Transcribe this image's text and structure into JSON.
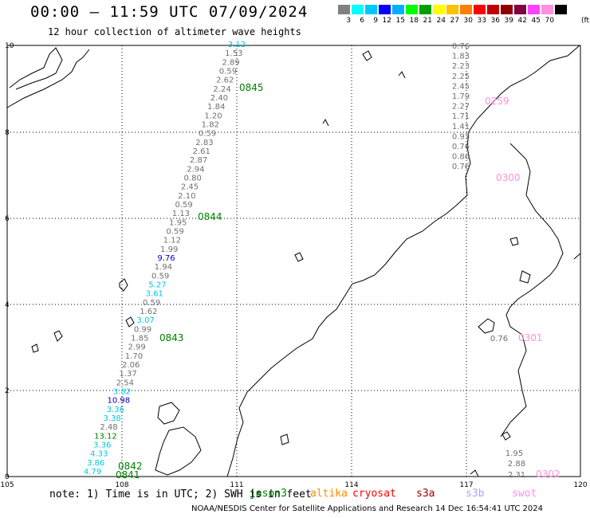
{
  "title": "00:00 — 11:59 UTC 07/09/2024",
  "subtitle": "12 hour collection of altimeter wave heights",
  "colorbar": {
    "colors": [
      "#808080",
      "#00ffff",
      "#00c8ff",
      "#0000ff",
      "#00b0ff",
      "#00ff00",
      "#00a000",
      "#ffff00",
      "#ffc000",
      "#ff8000",
      "#ff0000",
      "#c00000",
      "#900000",
      "#800040",
      "#ff40ff",
      "#ff90e0",
      "#000000"
    ],
    "labels": [
      "3",
      "6",
      "9",
      "12",
      "15",
      "18",
      "21",
      "24",
      "27",
      "30",
      "33",
      "36",
      "39",
      "42",
      "45",
      "70"
    ],
    "unit": "(ft)"
  },
  "axes": {
    "lon_ticks": [
      "105",
      "108",
      "111",
      "114",
      "117",
      "120"
    ],
    "lat_ticks": [
      "0",
      "2",
      "4",
      "6",
      "8",
      "10"
    ]
  },
  "track": [
    {
      "v": "3.12",
      "c": "#00c8e0"
    },
    {
      "v": "1.53",
      "c": "#707070"
    },
    {
      "v": "2.89",
      "c": "#707070"
    },
    {
      "v": "0.59",
      "c": "#707070"
    },
    {
      "v": "2.62",
      "c": "#707070"
    },
    {
      "v": "2.24",
      "c": "#707070"
    },
    {
      "v": "2.40",
      "c": "#707070"
    },
    {
      "v": "1.84",
      "c": "#707070"
    },
    {
      "v": "1.20",
      "c": "#707070"
    },
    {
      "v": "1.82",
      "c": "#707070"
    },
    {
      "v": "0.59",
      "c": "#707070"
    },
    {
      "v": "2.83",
      "c": "#707070"
    },
    {
      "v": "2.61",
      "c": "#707070"
    },
    {
      "v": "2.87",
      "c": "#707070"
    },
    {
      "v": "2.94",
      "c": "#707070"
    },
    {
      "v": "0.80",
      "c": "#707070"
    },
    {
      "v": "2.45",
      "c": "#707070"
    },
    {
      "v": "2.10",
      "c": "#707070"
    },
    {
      "v": "0.59",
      "c": "#707070"
    },
    {
      "v": "1.13",
      "c": "#707070"
    },
    {
      "v": "1.95",
      "c": "#707070"
    },
    {
      "v": "0.59",
      "c": "#707070"
    },
    {
      "v": "1.12",
      "c": "#707070"
    },
    {
      "v": "1.99",
      "c": "#707070"
    },
    {
      "v": "9.76",
      "c": "#0000c0"
    },
    {
      "v": "1.94",
      "c": "#707070"
    },
    {
      "v": "0.59",
      "c": "#707070"
    },
    {
      "v": "5.27",
      "c": "#00c8e0"
    },
    {
      "v": "3.61",
      "c": "#00c8e0"
    },
    {
      "v": "0.59",
      "c": "#707070"
    },
    {
      "v": "1.62",
      "c": "#707070"
    },
    {
      "v": "3.07",
      "c": "#00c8e0"
    },
    {
      "v": "0.99",
      "c": "#707070"
    },
    {
      "v": "1.85",
      "c": "#707070"
    },
    {
      "v": "2.99",
      "c": "#707070"
    },
    {
      "v": "1.70",
      "c": "#707070"
    },
    {
      "v": "2.06",
      "c": "#707070"
    },
    {
      "v": "1.37",
      "c": "#707070"
    },
    {
      "v": "2.54",
      "c": "#707070"
    },
    {
      "v": "3.82",
      "c": "#00c8e0"
    },
    {
      "v": "10.98",
      "c": "#0000c0"
    },
    {
      "v": "3.36",
      "c": "#00c8e0"
    },
    {
      "v": "3.38",
      "c": "#00c8e0"
    },
    {
      "v": "2.48",
      "c": "#707070"
    },
    {
      "v": "13.12",
      "c": "#008000"
    },
    {
      "v": "3.36",
      "c": "#00c8e0"
    },
    {
      "v": "4.33",
      "c": "#00c8e0"
    },
    {
      "v": "3.86",
      "c": "#00c8e0"
    },
    {
      "v": "4.79",
      "c": "#00c8e0"
    }
  ],
  "track_times": [
    "0845",
    "0844",
    "0843",
    "0842",
    "0841"
  ],
  "east_track": [
    {
      "v": "0.76"
    },
    {
      "v": "1.83"
    },
    {
      "v": "2.23"
    },
    {
      "v": "2.25"
    },
    {
      "v": "2.45"
    },
    {
      "v": "1.79"
    },
    {
      "v": "2.27"
    },
    {
      "v": "1.71"
    },
    {
      "v": "1.41"
    },
    {
      "v": "0.97"
    },
    {
      "v": "0.76"
    },
    {
      "v": "0.86"
    },
    {
      "v": "0.76"
    }
  ],
  "east_times": [
    "0259",
    "0300",
    "0301",
    "0302"
  ],
  "east_extra": [
    "0.76",
    "1.95",
    "2.88",
    "2.31"
  ],
  "note": "note: 1) Time is in UTC; 2) SWH is in feet",
  "satellites": [
    {
      "name": "jason3",
      "color": "#008000"
    },
    {
      "name": "altika",
      "color": "#ff8c00"
    },
    {
      "name": "cryosat",
      "color": "#ff0000"
    },
    {
      "name": "s3a",
      "color": "#a00000"
    },
    {
      "name": "s3b",
      "color": "#b0a0ff"
    },
    {
      "name": "swot",
      "color": "#ff90e0"
    }
  ],
  "footer": "NOAA/NESDIS Center for Satellite Applications and Research    14 Dec 16:54:41 UTC 2024"
}
